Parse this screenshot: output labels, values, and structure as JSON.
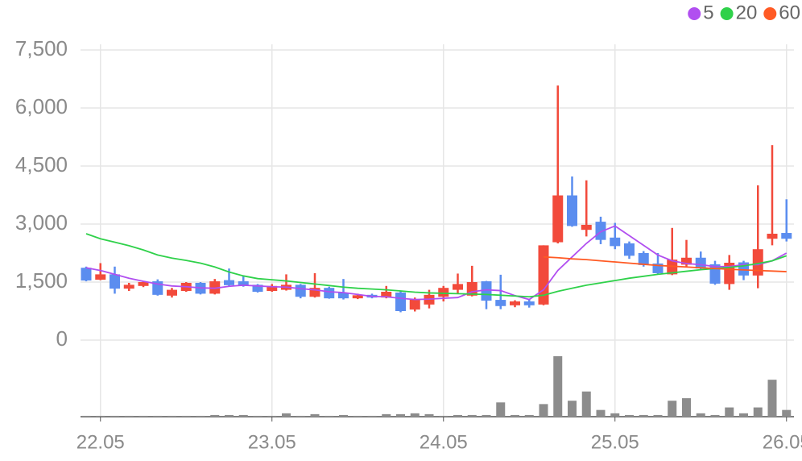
{
  "chart_data": {
    "type": "candlestick",
    "categories": [
      null,
      "22.05",
      null,
      null,
      null,
      null,
      null,
      null,
      null,
      null,
      null,
      null,
      null,
      "23.05",
      null,
      null,
      null,
      null,
      null,
      null,
      null,
      null,
      null,
      null,
      null,
      "24.05",
      null,
      null,
      null,
      null,
      null,
      null,
      null,
      null,
      null,
      null,
      null,
      "25.05",
      null,
      null,
      null,
      null,
      null,
      null,
      null,
      null,
      null,
      null,
      null,
      "26.05"
    ],
    "open": [
      1870,
      1560,
      1700,
      1330,
      1400,
      1520,
      1150,
      1270,
      1480,
      1200,
      1550,
      1520,
      1430,
      1270,
      1300,
      1430,
      1120,
      1350,
      1220,
      1080,
      1170,
      1100,
      1230,
      790,
      920,
      1120,
      1300,
      1150,
      1520,
      1040,
      900,
      1000,
      920,
      2530,
      3740,
      2850,
      3060,
      2650,
      2500,
      2250,
      1980,
      1700,
      1950,
      2130,
      1960,
      1450,
      2010,
      1670,
      2620,
      2770
    ],
    "high": [
      1900,
      1990,
      1900,
      1480,
      1530,
      1570,
      1350,
      1500,
      1500,
      1580,
      1850,
      1650,
      1450,
      1450,
      1700,
      1450,
      1730,
      1380,
      1580,
      1200,
      1200,
      1400,
      1270,
      1100,
      1300,
      1400,
      1720,
      1920,
      1530,
      1690,
      1030,
      1050,
      2450,
      6580,
      4230,
      4130,
      3190,
      3030,
      2550,
      2300,
      2250,
      2900,
      2590,
      2290,
      2050,
      2200,
      2050,
      4000,
      5040,
      3640
    ],
    "low": [
      1520,
      1550,
      1200,
      1270,
      1370,
      1150,
      1100,
      1250,
      1180,
      1180,
      1400,
      1380,
      1230,
      1250,
      1280,
      1080,
      1100,
      1070,
      1050,
      1060,
      1080,
      1080,
      720,
      740,
      820,
      1000,
      1200,
      1130,
      800,
      800,
      850,
      840,
      900,
      2500,
      2930,
      2680,
      2480,
      2350,
      2100,
      1900,
      1700,
      1680,
      1890,
      1820,
      1430,
      1300,
      1550,
      1340,
      2450,
      2550
    ],
    "close": [
      1540,
      1700,
      1330,
      1430,
      1500,
      1170,
      1300,
      1480,
      1200,
      1520,
      1420,
      1400,
      1250,
      1400,
      1430,
      1120,
      1350,
      1080,
      1080,
      1160,
      1100,
      1250,
      750,
      1050,
      1170,
      1350,
      1450,
      1500,
      1020,
      880,
      1000,
      900,
      2450,
      3740,
      2950,
      2980,
      2590,
      2430,
      2180,
      1940,
      1730,
      2080,
      2130,
      1850,
      1460,
      2000,
      1670,
      2350,
      2750,
      2620
    ],
    "volume": [
      1,
      1,
      1,
      1,
      1,
      1,
      1,
      1,
      1,
      2,
      2,
      2,
      1,
      1,
      4,
      1,
      3,
      1,
      2,
      1,
      1,
      3,
      3,
      4,
      3,
      1,
      2,
      2,
      2,
      17,
      2,
      2,
      15,
      72,
      19,
      30,
      8,
      4,
      2,
      2,
      2,
      19,
      22,
      4,
      2,
      11,
      4,
      11,
      44,
      8
    ],
    "up_color": "#f24a3b",
    "down_color": "#5b8def",
    "volume_color": "#8c8c8c",
    "series": [
      {
        "name": "5",
        "color": "#b14ff0",
        "values": [
          1870,
          1800,
          1700,
          1600,
          1520,
          1450,
          1400,
          1380,
          1350,
          1340,
          1390,
          1420,
          1400,
          1380,
          1370,
          1330,
          1300,
          1250,
          1230,
          1180,
          1130,
          1120,
          1080,
          1050,
          1060,
          1080,
          1100,
          1250,
          1300,
          1280,
          1150,
          1050,
          1300,
          1800,
          2150,
          2500,
          2800,
          2950,
          2700,
          2450,
          2200,
          2050,
          1980,
          1950,
          1900,
          1900,
          1950,
          1950,
          2050,
          2250
        ]
      },
      {
        "name": "20",
        "color": "#2fd14a",
        "values": [
          2750,
          2620,
          2530,
          2440,
          2330,
          2200,
          2120,
          2060,
          1990,
          1890,
          1760,
          1660,
          1590,
          1560,
          1530,
          1490,
          1450,
          1410,
          1370,
          1340,
          1320,
          1300,
          1270,
          1240,
          1220,
          1210,
          1200,
          1190,
          1180,
          1160,
          1140,
          1120,
          1160,
          1260,
          1340,
          1420,
          1480,
          1540,
          1600,
          1650,
          1700,
          1740,
          1780,
          1820,
          1850,
          1880,
          1920,
          1980,
          2050,
          2180
        ]
      },
      {
        "name": "60",
        "color": "#ff5a24",
        "values": [
          null,
          null,
          null,
          null,
          null,
          null,
          null,
          null,
          null,
          null,
          null,
          null,
          null,
          null,
          null,
          null,
          null,
          null,
          null,
          null,
          null,
          null,
          null,
          null,
          null,
          null,
          null,
          null,
          null,
          null,
          null,
          null,
          2150,
          2130,
          2100,
          2080,
          2050,
          2020,
          1990,
          1960,
          1930,
          1910,
          1890,
          1870,
          1850,
          1830,
          1815,
          1800,
          1785,
          1770
        ]
      }
    ],
    "ylim": [
      0,
      7500
    ],
    "yticks": [
      0,
      {
        "value": 1500,
        "label": "1,500"
      },
      {
        "value": 3000,
        "label": "3,000"
      },
      {
        "value": 4500,
        "label": "4,500"
      },
      {
        "value": 6000,
        "label": "6,000"
      },
      {
        "value": 7500,
        "label": "7,500"
      }
    ],
    "grid": true
  }
}
